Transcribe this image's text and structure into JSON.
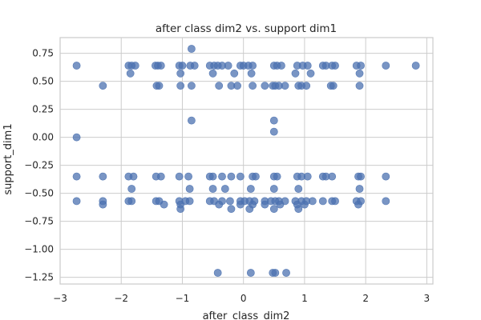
{
  "chart_data": {
    "type": "scatter",
    "title": "after class dim2 vs. support dim1",
    "xlabel": "after_class_dim2",
    "ylabel": "support_dim1",
    "xlim": [
      -3,
      3.1
    ],
    "ylim": [
      -1.31,
      0.89
    ],
    "grid": true,
    "legend": "none",
    "color": "#4c72b0",
    "xticks": [
      -3,
      -2,
      -1,
      0,
      1,
      2,
      3
    ],
    "xtick_labels": [
      "−3",
      "−2",
      "−1",
      "0",
      "1",
      "2",
      "3"
    ],
    "yticks": [
      0.75,
      0.5,
      0.25,
      0.0,
      -0.25,
      -0.5,
      -0.75,
      -1.0,
      -1.25
    ],
    "ytick_labels": [
      "0.75",
      "0.50",
      "0.25",
      "0.00",
      "−0.25",
      "−0.50",
      "−0.75",
      "−1.00",
      "−1.25"
    ],
    "points": [
      {
        "x": -2.73,
        "y": 0.64
      },
      {
        "x": -1.88,
        "y": 0.64
      },
      {
        "x": -1.83,
        "y": 0.64
      },
      {
        "x": -1.77,
        "y": 0.64
      },
      {
        "x": -1.44,
        "y": 0.64
      },
      {
        "x": -1.4,
        "y": 0.64
      },
      {
        "x": -1.35,
        "y": 0.64
      },
      {
        "x": -1.05,
        "y": 0.64
      },
      {
        "x": -1.0,
        "y": 0.64
      },
      {
        "x": -0.87,
        "y": 0.64
      },
      {
        "x": -0.8,
        "y": 0.64
      },
      {
        "x": -0.55,
        "y": 0.64
      },
      {
        "x": -0.48,
        "y": 0.64
      },
      {
        "x": -0.42,
        "y": 0.64
      },
      {
        "x": -0.35,
        "y": 0.64
      },
      {
        "x": -0.25,
        "y": 0.64
      },
      {
        "x": -0.05,
        "y": 0.64
      },
      {
        "x": 0.0,
        "y": 0.64
      },
      {
        "x": 0.08,
        "y": 0.64
      },
      {
        "x": 0.15,
        "y": 0.64
      },
      {
        "x": 0.5,
        "y": 0.64
      },
      {
        "x": 0.55,
        "y": 0.64
      },
      {
        "x": 0.62,
        "y": 0.64
      },
      {
        "x": 0.88,
        "y": 0.64
      },
      {
        "x": 0.97,
        "y": 0.64
      },
      {
        "x": 1.05,
        "y": 0.64
      },
      {
        "x": 1.3,
        "y": 0.64
      },
      {
        "x": 1.35,
        "y": 0.64
      },
      {
        "x": 1.45,
        "y": 0.64
      },
      {
        "x": 1.5,
        "y": 0.64
      },
      {
        "x": 1.85,
        "y": 0.64
      },
      {
        "x": 1.92,
        "y": 0.64
      },
      {
        "x": 2.33,
        "y": 0.64
      },
      {
        "x": 2.82,
        "y": 0.64
      },
      {
        "x": -1.85,
        "y": 0.57
      },
      {
        "x": -1.03,
        "y": 0.57
      },
      {
        "x": -0.5,
        "y": 0.57
      },
      {
        "x": -0.15,
        "y": 0.57
      },
      {
        "x": 0.13,
        "y": 0.57
      },
      {
        "x": 0.85,
        "y": 0.57
      },
      {
        "x": 1.1,
        "y": 0.57
      },
      {
        "x": 1.9,
        "y": 0.57
      },
      {
        "x": -0.85,
        "y": 0.79
      },
      {
        "x": -2.3,
        "y": 0.46
      },
      {
        "x": -1.42,
        "y": 0.46
      },
      {
        "x": -1.38,
        "y": 0.46
      },
      {
        "x": -1.03,
        "y": 0.46
      },
      {
        "x": -0.85,
        "y": 0.46
      },
      {
        "x": -0.4,
        "y": 0.46
      },
      {
        "x": -0.2,
        "y": 0.46
      },
      {
        "x": -0.1,
        "y": 0.46
      },
      {
        "x": 0.15,
        "y": 0.46
      },
      {
        "x": 0.35,
        "y": 0.46
      },
      {
        "x": 0.48,
        "y": 0.46
      },
      {
        "x": 0.52,
        "y": 0.46
      },
      {
        "x": 0.58,
        "y": 0.46
      },
      {
        "x": 0.68,
        "y": 0.46
      },
      {
        "x": 0.9,
        "y": 0.46
      },
      {
        "x": 0.95,
        "y": 0.46
      },
      {
        "x": 1.03,
        "y": 0.46
      },
      {
        "x": 1.43,
        "y": 0.46
      },
      {
        "x": 1.47,
        "y": 0.46
      },
      {
        "x": 1.9,
        "y": 0.46
      },
      {
        "x": -0.85,
        "y": 0.15
      },
      {
        "x": 0.5,
        "y": 0.15
      },
      {
        "x": -2.73,
        "y": 0.0
      },
      {
        "x": 0.5,
        "y": 0.05
      },
      {
        "x": -2.73,
        "y": -0.35
      },
      {
        "x": -2.3,
        "y": -0.35
      },
      {
        "x": -1.88,
        "y": -0.35
      },
      {
        "x": -1.8,
        "y": -0.35
      },
      {
        "x": -1.43,
        "y": -0.35
      },
      {
        "x": -1.35,
        "y": -0.35
      },
      {
        "x": -1.05,
        "y": -0.35
      },
      {
        "x": -0.9,
        "y": -0.35
      },
      {
        "x": -0.55,
        "y": -0.35
      },
      {
        "x": -0.5,
        "y": -0.35
      },
      {
        "x": -0.35,
        "y": -0.35
      },
      {
        "x": -0.2,
        "y": -0.35
      },
      {
        "x": -0.05,
        "y": -0.35
      },
      {
        "x": 0.15,
        "y": -0.35
      },
      {
        "x": 0.2,
        "y": -0.35
      },
      {
        "x": 0.5,
        "y": -0.35
      },
      {
        "x": 0.55,
        "y": -0.35
      },
      {
        "x": 0.88,
        "y": -0.35
      },
      {
        "x": 0.95,
        "y": -0.35
      },
      {
        "x": 1.05,
        "y": -0.35
      },
      {
        "x": 1.3,
        "y": -0.35
      },
      {
        "x": 1.35,
        "y": -0.35
      },
      {
        "x": 1.45,
        "y": -0.35
      },
      {
        "x": 1.88,
        "y": -0.35
      },
      {
        "x": 1.92,
        "y": -0.35
      },
      {
        "x": 2.33,
        "y": -0.35
      },
      {
        "x": -1.83,
        "y": -0.46
      },
      {
        "x": -0.88,
        "y": -0.46
      },
      {
        "x": -0.5,
        "y": -0.46
      },
      {
        "x": -0.3,
        "y": -0.46
      },
      {
        "x": 0.12,
        "y": -0.46
      },
      {
        "x": 0.5,
        "y": -0.46
      },
      {
        "x": 0.9,
        "y": -0.46
      },
      {
        "x": 1.9,
        "y": -0.46
      },
      {
        "x": -2.73,
        "y": -0.57
      },
      {
        "x": -2.3,
        "y": -0.57
      },
      {
        "x": -1.88,
        "y": -0.57
      },
      {
        "x": -1.83,
        "y": -0.57
      },
      {
        "x": -1.43,
        "y": -0.57
      },
      {
        "x": -1.38,
        "y": -0.57
      },
      {
        "x": -1.05,
        "y": -0.57
      },
      {
        "x": -0.95,
        "y": -0.57
      },
      {
        "x": -0.88,
        "y": -0.57
      },
      {
        "x": -0.55,
        "y": -0.57
      },
      {
        "x": -0.48,
        "y": -0.57
      },
      {
        "x": -0.35,
        "y": -0.57
      },
      {
        "x": -0.22,
        "y": -0.57
      },
      {
        "x": -0.05,
        "y": -0.57
      },
      {
        "x": 0.02,
        "y": -0.57
      },
      {
        "x": 0.1,
        "y": -0.57
      },
      {
        "x": 0.18,
        "y": -0.57
      },
      {
        "x": 0.35,
        "y": -0.57
      },
      {
        "x": 0.45,
        "y": -0.57
      },
      {
        "x": 0.52,
        "y": -0.57
      },
      {
        "x": 0.58,
        "y": -0.57
      },
      {
        "x": 0.68,
        "y": -0.57
      },
      {
        "x": 0.85,
        "y": -0.57
      },
      {
        "x": 0.95,
        "y": -0.57
      },
      {
        "x": 1.03,
        "y": -0.57
      },
      {
        "x": 1.13,
        "y": -0.57
      },
      {
        "x": 1.3,
        "y": -0.57
      },
      {
        "x": 1.45,
        "y": -0.57
      },
      {
        "x": 1.5,
        "y": -0.57
      },
      {
        "x": 1.85,
        "y": -0.57
      },
      {
        "x": 1.92,
        "y": -0.57
      },
      {
        "x": 2.33,
        "y": -0.57
      },
      {
        "x": -2.3,
        "y": -0.6
      },
      {
        "x": -1.3,
        "y": -0.6
      },
      {
        "x": -1.03,
        "y": -0.6
      },
      {
        "x": -0.4,
        "y": -0.6
      },
      {
        "x": -0.05,
        "y": -0.6
      },
      {
        "x": 0.15,
        "y": -0.6
      },
      {
        "x": 0.35,
        "y": -0.6
      },
      {
        "x": 0.6,
        "y": -0.6
      },
      {
        "x": 0.88,
        "y": -0.6
      },
      {
        "x": 1.0,
        "y": -0.6
      },
      {
        "x": 1.88,
        "y": -0.6
      },
      {
        "x": -1.03,
        "y": -0.64
      },
      {
        "x": -0.2,
        "y": -0.64
      },
      {
        "x": 0.1,
        "y": -0.64
      },
      {
        "x": 0.5,
        "y": -0.64
      },
      {
        "x": 0.9,
        "y": -0.64
      },
      {
        "x": -0.42,
        "y": -1.21
      },
      {
        "x": 0.12,
        "y": -1.21
      },
      {
        "x": 0.48,
        "y": -1.21
      },
      {
        "x": 0.52,
        "y": -1.21
      },
      {
        "x": 0.7,
        "y": -1.21
      }
    ]
  }
}
